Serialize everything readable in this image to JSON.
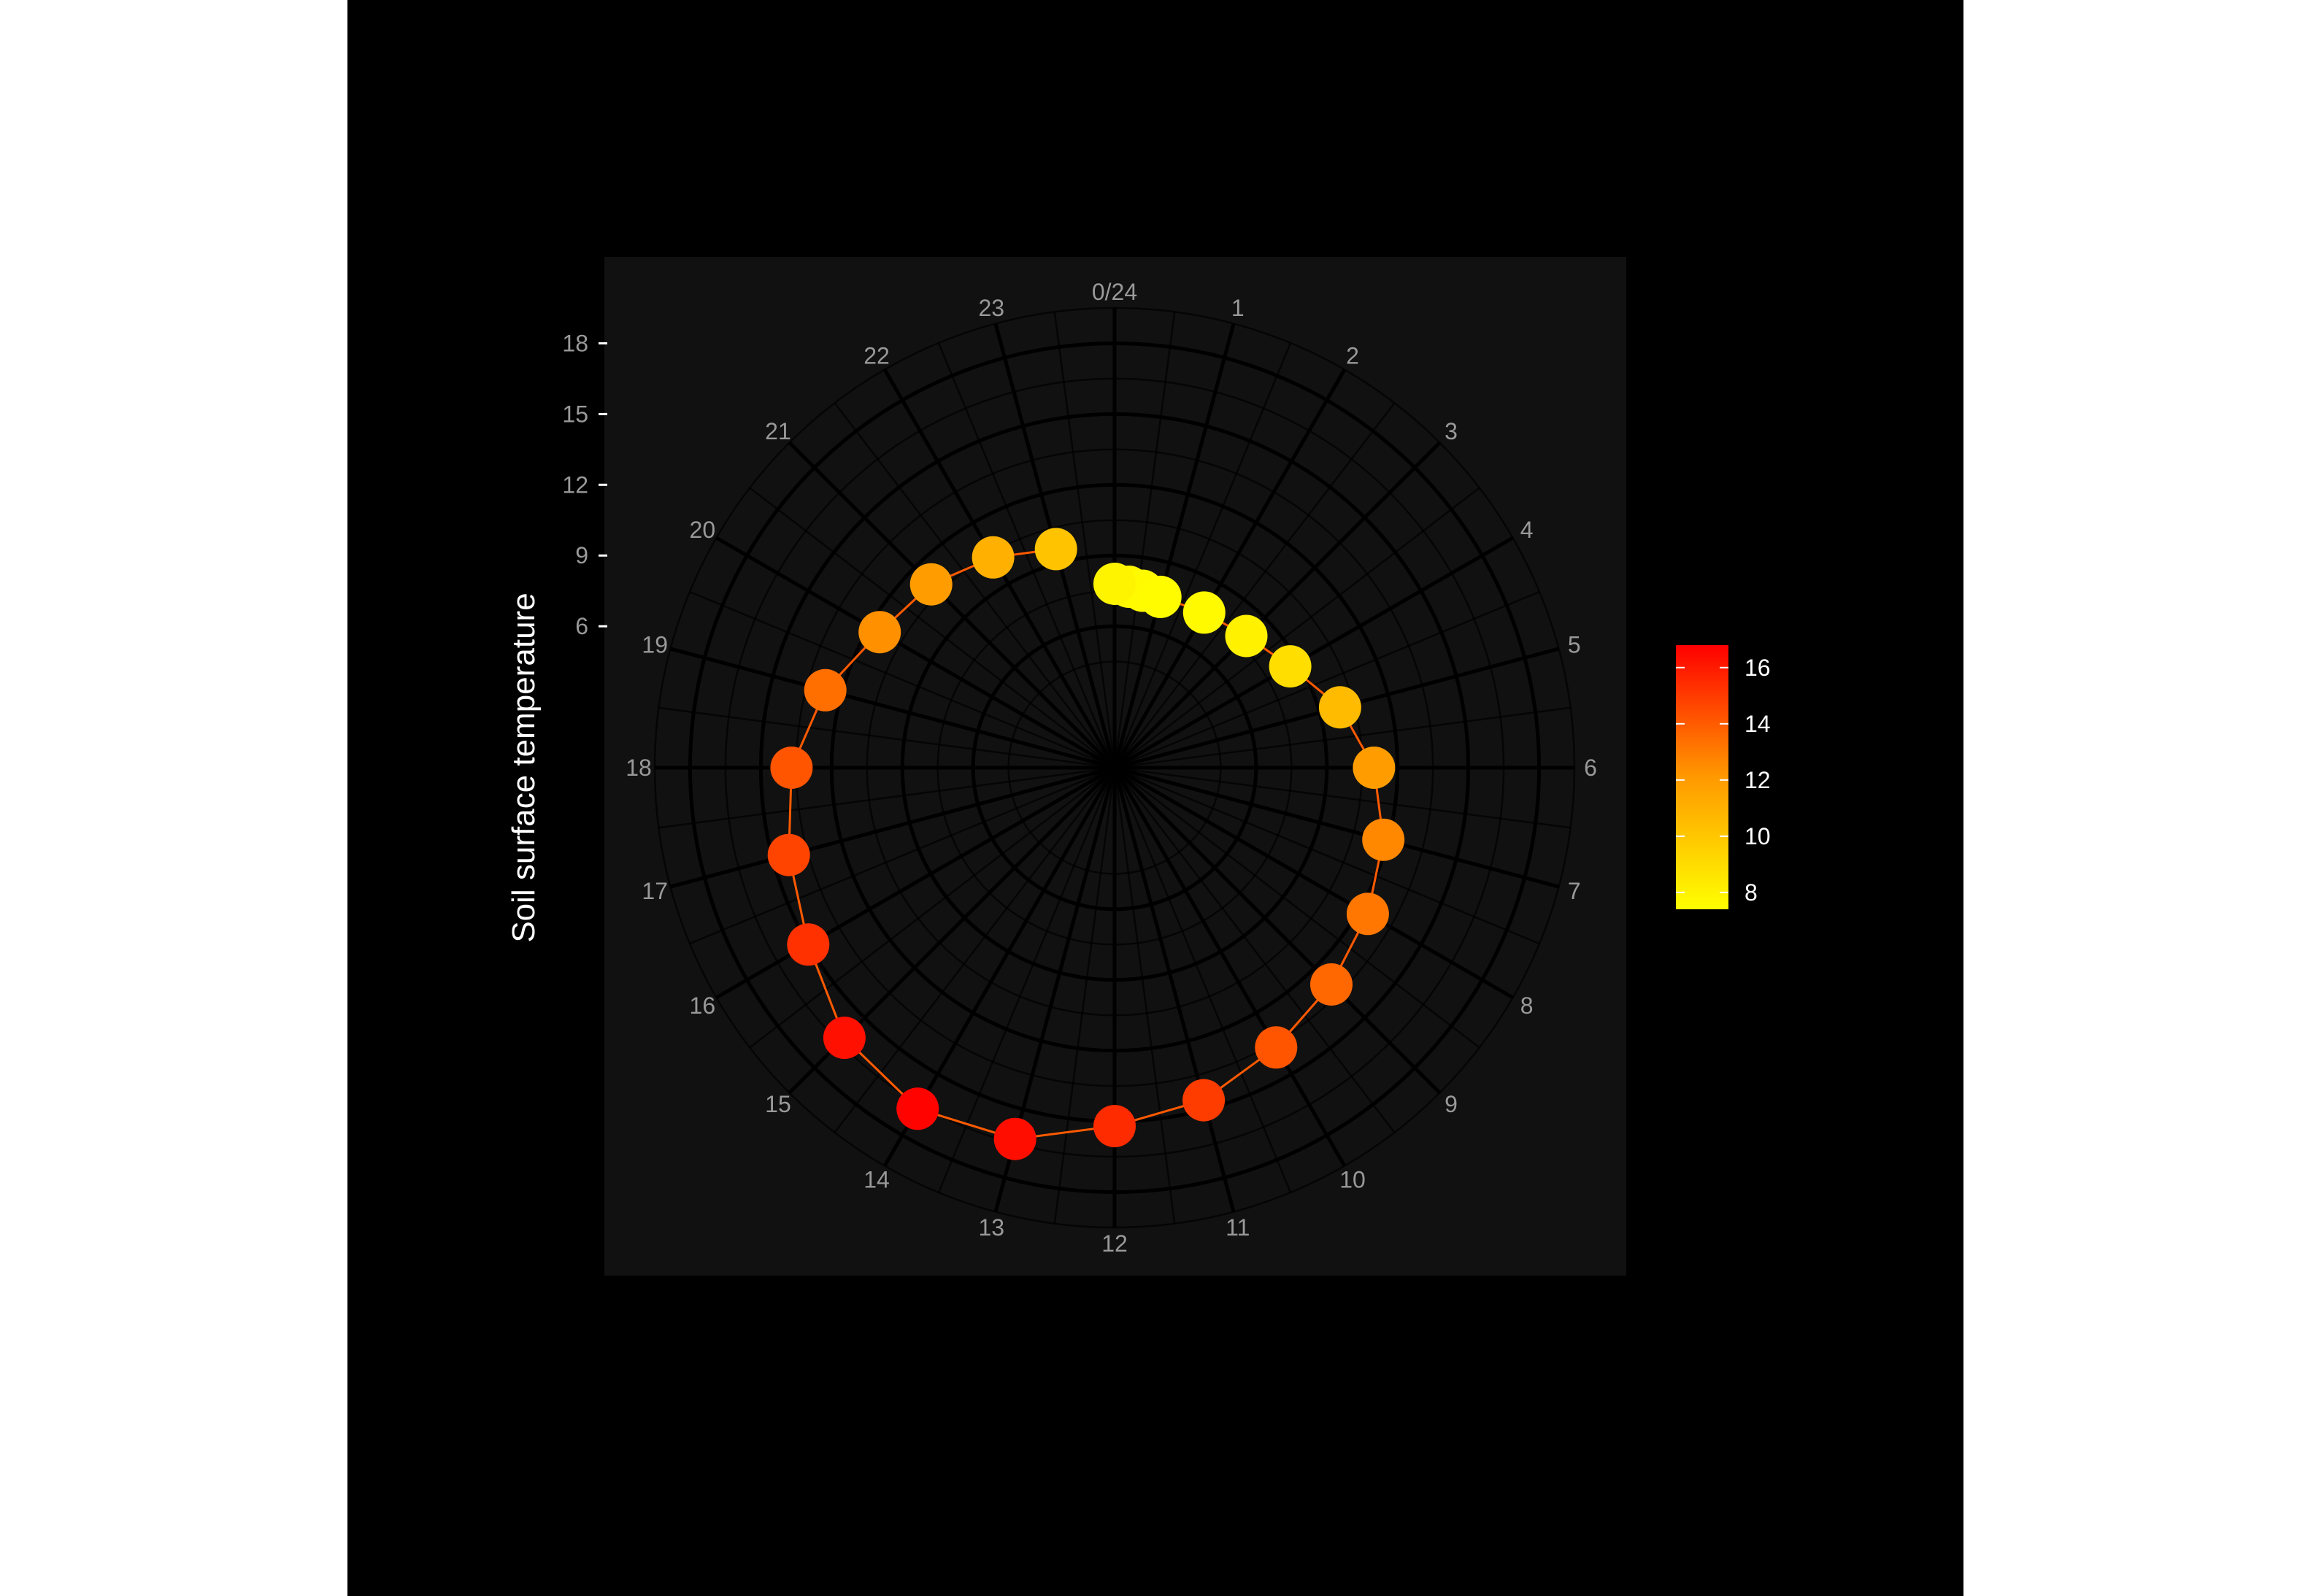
{
  "chart_data": {
    "type": "scatter",
    "coordinate_system": "polar",
    "title": "",
    "xlabel": "",
    "ylabel": "Soil surface temperature",
    "x_ticks": [
      "0/24",
      "1",
      "2",
      "3",
      "4",
      "5",
      "6",
      "7",
      "8",
      "9",
      "10",
      "11",
      "12",
      "13",
      "14",
      "15",
      "16",
      "17",
      "18",
      "19",
      "20",
      "21",
      "22",
      "23"
    ],
    "y_ticks": [
      6,
      9,
      12,
      15,
      18
    ],
    "xlim": [
      0,
      24
    ],
    "ylim": [
      0,
      19.5
    ],
    "grid": true,
    "connect_points": true,
    "legend": {
      "position": "right",
      "type": "colorbar",
      "range": [
        7.4,
        16.8
      ],
      "ticks": [
        8,
        10,
        12,
        14,
        16
      ],
      "color_low": "#FFFF00",
      "color_high": "#FF0000"
    },
    "colors": {
      "background": "#000000",
      "panel": "#111111",
      "grid": "#000000",
      "axis_text": "#999999",
      "label_text": "#FFFFFF"
    },
    "points": [
      {
        "hour": 0,
        "temp": 7.8
      },
      {
        "hour": 1,
        "temp": 7.5
      },
      {
        "hour": 2,
        "temp": 7.6
      },
      {
        "hour": 3,
        "temp": 7.9
      },
      {
        "hour": 4,
        "temp": 8.6
      },
      {
        "hour": 5,
        "temp": 9.9
      },
      {
        "hour": 6,
        "temp": 11.0
      },
      {
        "hour": 7,
        "temp": 11.8
      },
      {
        "hour": 8,
        "temp": 12.4
      },
      {
        "hour": 9,
        "temp": 13.0
      },
      {
        "hour": 10,
        "temp": 13.7
      },
      {
        "hour": 11,
        "temp": 14.6
      },
      {
        "hour": 12,
        "temp": 15.2
      },
      {
        "hour": 13,
        "temp": 16.3
      },
      {
        "hour": 14,
        "temp": 16.7
      },
      {
        "hour": 15,
        "temp": 16.2
      },
      {
        "hour": 16,
        "temp": 15.0
      },
      {
        "hour": 17,
        "temp": 14.3
      },
      {
        "hour": 18,
        "temp": 13.7
      },
      {
        "hour": 19,
        "temp": 12.7
      },
      {
        "hour": 20,
        "temp": 11.5
      },
      {
        "hour": 21,
        "temp": 11.0
      },
      {
        "hour": 22,
        "temp": 10.3
      },
      {
        "hour": 23,
        "temp": 9.6
      }
    ],
    "inner_cluster": [
      {
        "hour": 0.3,
        "temp": 7.7
      },
      {
        "hour": 0.6,
        "temp": 7.6
      }
    ]
  }
}
